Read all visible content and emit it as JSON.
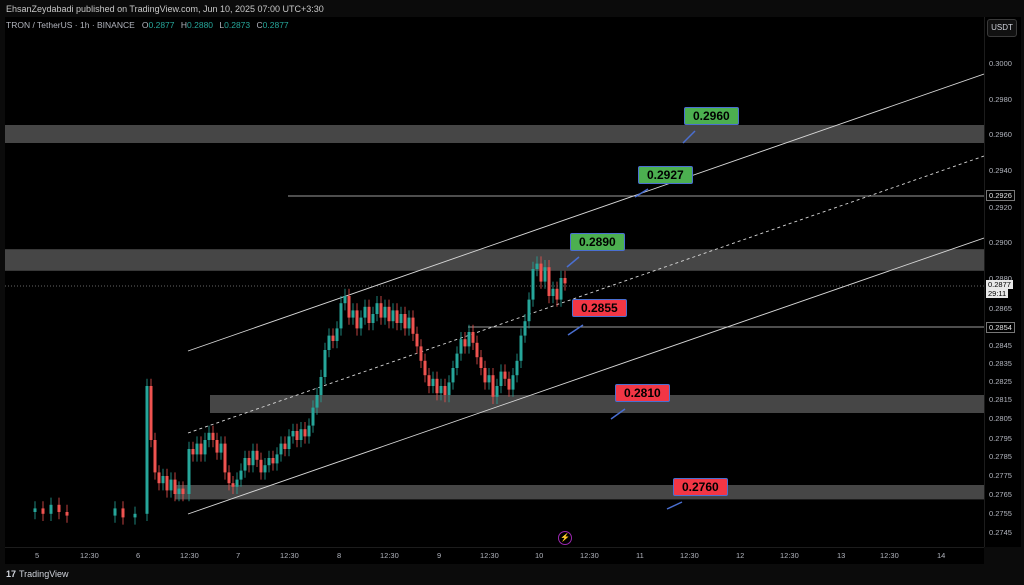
{
  "header": {
    "published_line": "EhsanZeydabadi published on TradingView.com, Jun 10, 2025 07:00 UTC+3:30",
    "symbol": "TRON / TetherUS · 1h · BINANCE",
    "ohlc": [
      {
        "label": "O",
        "value": "0.2877"
      },
      {
        "label": "H",
        "value": "0.2880"
      },
      {
        "label": "L",
        "value": "0.2873"
      },
      {
        "label": "C",
        "value": "0.2877"
      }
    ]
  },
  "price_axis": {
    "currency": "USDT",
    "ticks": [
      "0.3000",
      "0.2980",
      "0.2960",
      "0.2940",
      "0.2920",
      "0.2900",
      "0.2880",
      "0.2865",
      "0.2845",
      "0.2835",
      "0.2825",
      "0.2815",
      "0.2805",
      "0.2795",
      "0.2785",
      "0.2775",
      "0.2765",
      "0.2755",
      "0.2745"
    ],
    "tag_level": "0.2926",
    "tag_current": "0.2877",
    "tag_countdown": "29:11",
    "tag_low": "0.2854"
  },
  "time_axis": {
    "ticks": [
      "5",
      "12:30",
      "6",
      "12:30",
      "7",
      "12:30",
      "8",
      "12:30",
      "9",
      "12:30",
      "10",
      "12:30",
      "11",
      "12:30",
      "12",
      "12:30",
      "13",
      "12:30",
      "14"
    ]
  },
  "callouts": {
    "c1": "0.2960",
    "c2": "0.2927",
    "c3": "0.2890",
    "c4": "0.2855",
    "c5": "0.2810",
    "c6": "0.2760"
  },
  "footer": {
    "brand": "TradingView",
    "logo": "17"
  },
  "colors": {
    "up": "#26a69a",
    "down": "#ef5350",
    "zone": "#5d5d5d",
    "green_label": "#4caf50",
    "red_label": "#f23645"
  },
  "chart_data": {
    "type": "candlestick",
    "title": "TRON / TetherUS · 1h · BINANCE",
    "ylim": [
      0.2745,
      0.3
    ],
    "key_levels": [
      0.296,
      0.2927,
      0.289,
      0.2855,
      0.281,
      0.276
    ],
    "zones": [
      {
        "from": 0.2955,
        "to": 0.2965
      },
      {
        "from": 0.2884,
        "to": 0.2896
      },
      {
        "from": 0.2805,
        "to": 0.2815
      },
      {
        "from": 0.2757,
        "to": 0.2765
      }
    ],
    "last_price": 0.2877
  }
}
